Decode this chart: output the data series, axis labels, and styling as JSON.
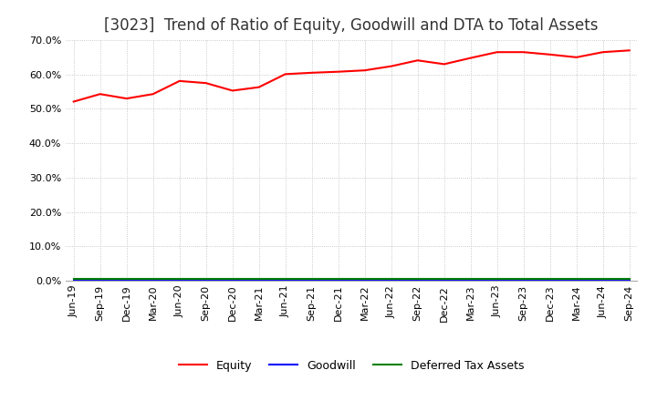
{
  "title": "[3023]  Trend of Ratio of Equity, Goodwill and DTA to Total Assets",
  "ylim": [
    0.0,
    0.7
  ],
  "yticks": [
    0.0,
    0.1,
    0.2,
    0.3,
    0.4,
    0.5,
    0.6,
    0.7
  ],
  "x_labels": [
    "Jun-19",
    "Sep-19",
    "Dec-19",
    "Mar-20",
    "Jun-20",
    "Sep-20",
    "Dec-20",
    "Mar-21",
    "Jun-21",
    "Sep-21",
    "Dec-21",
    "Mar-22",
    "Jun-22",
    "Sep-22",
    "Dec-22",
    "Mar-23",
    "Jun-23",
    "Sep-23",
    "Dec-23",
    "Mar-24",
    "Jun-24",
    "Sep-24"
  ],
  "equity": [
    0.521,
    0.543,
    0.53,
    0.543,
    0.581,
    0.575,
    0.553,
    0.563,
    0.601,
    0.605,
    0.608,
    0.612,
    0.624,
    0.641,
    0.63,
    0.648,
    0.665,
    0.665,
    0.658,
    0.65,
    0.665,
    0.67
  ],
  "goodwill": [
    0.002,
    0.002,
    0.002,
    0.002,
    0.002,
    0.002,
    0.002,
    0.002,
    0.002,
    0.002,
    0.002,
    0.002,
    0.002,
    0.002,
    0.002,
    0.002,
    0.002,
    0.002,
    0.002,
    0.002,
    0.002,
    0.002
  ],
  "dta": [
    0.006,
    0.006,
    0.006,
    0.006,
    0.006,
    0.006,
    0.006,
    0.006,
    0.006,
    0.006,
    0.006,
    0.006,
    0.006,
    0.006,
    0.006,
    0.006,
    0.006,
    0.006,
    0.006,
    0.006,
    0.006,
    0.006
  ],
  "equity_color": "#FF0000",
  "goodwill_color": "#0000FF",
  "dta_color": "#008000",
  "legend_labels": [
    "Equity",
    "Goodwill",
    "Deferred Tax Assets"
  ],
  "background_color": "#FFFFFF",
  "grid_color": "#BBBBBB",
  "title_fontsize": 12,
  "tick_fontsize": 8
}
